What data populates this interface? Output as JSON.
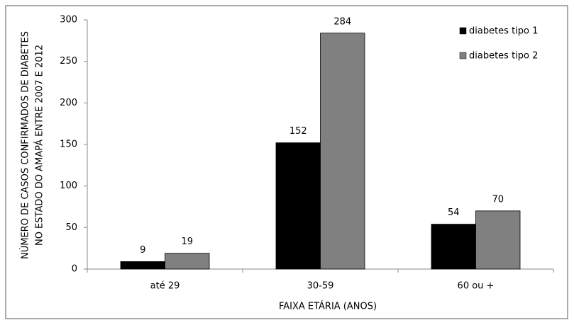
{
  "chart_data": {
    "type": "bar",
    "y_label": [
      "NÚMERO DE CASOS CONFIRMADOS DE DIABETES",
      "NO ESTADO DO AMAPÁ ENTRE 2007 E 2012"
    ],
    "x_label": "FAIXA ETÁRIA (ANOS)",
    "categories": [
      "até 29",
      "30-59",
      "60 ou +"
    ],
    "series": [
      {
        "name": "diabetes tipo 1",
        "color": "#000000",
        "values": [
          9,
          152,
          54
        ]
      },
      {
        "name": "diabetes tipo 2",
        "color": "#808080",
        "values": [
          19,
          284,
          70
        ]
      }
    ],
    "ylim": [
      0,
      300
    ],
    "yticks": [
      0,
      50,
      100,
      150,
      200,
      250,
      300
    ],
    "grid": false,
    "legend": "top-right"
  }
}
